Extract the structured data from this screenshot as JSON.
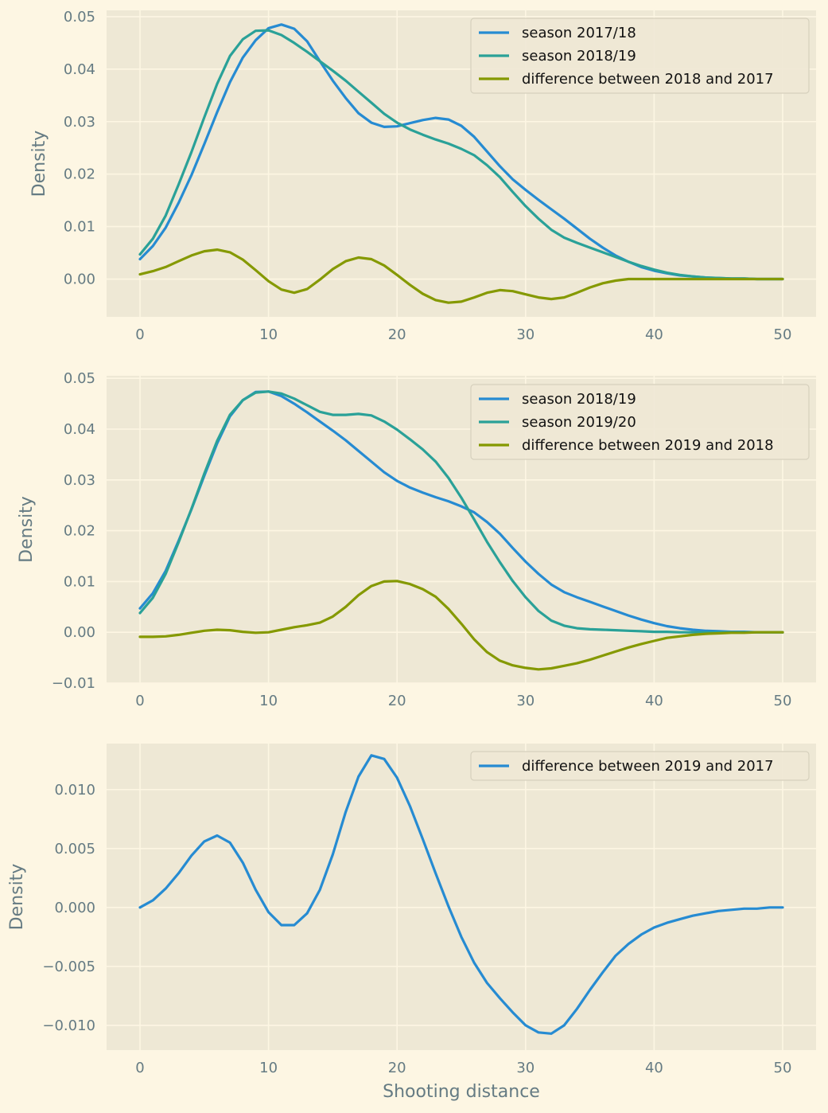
{
  "colors": {
    "figure_bg": "#fdf6e3",
    "axes_bg": "#eee8d5",
    "grid": "#fdf6e3",
    "text": "#657b83",
    "blue": "#268bd2",
    "cyan": "#2aa198",
    "olive": "#859900"
  },
  "chart_data": [
    {
      "type": "line",
      "title": "",
      "xlabel": "",
      "ylabel": "Density",
      "xlim": [
        -2.6,
        52.6
      ],
      "ylim": [
        -0.0072,
        0.0512
      ],
      "xticks": [
        0,
        10,
        20,
        30,
        40,
        50
      ],
      "xtick_labels": [
        "0",
        "10",
        "20",
        "30",
        "40",
        "50"
      ],
      "yticks": [
        0.0,
        0.01,
        0.02,
        0.03,
        0.04,
        0.05
      ],
      "ytick_labels": [
        "0.00",
        "0.01",
        "0.02",
        "0.03",
        "0.04",
        "0.05"
      ],
      "grid": true,
      "legend_position": "upper right",
      "x": [
        0,
        1,
        2,
        3,
        4,
        5,
        6,
        7,
        8,
        9,
        10,
        11,
        12,
        13,
        14,
        15,
        16,
        17,
        18,
        19,
        20,
        21,
        22,
        23,
        24,
        25,
        26,
        27,
        28,
        29,
        30,
        31,
        32,
        33,
        34,
        35,
        36,
        37,
        38,
        39,
        40,
        41,
        42,
        43,
        44,
        45,
        46,
        47,
        48,
        49,
        50
      ],
      "series": [
        {
          "name": "season 2017/18",
          "color": "#268bd2",
          "values": [
            0.0038,
            0.0063,
            0.0098,
            0.0145,
            0.0198,
            0.0257,
            0.0318,
            0.0375,
            0.0422,
            0.0455,
            0.0478,
            0.0485,
            0.0477,
            0.0453,
            0.0415,
            0.0378,
            0.0345,
            0.0316,
            0.0298,
            0.029,
            0.0291,
            0.0297,
            0.0303,
            0.0307,
            0.0304,
            0.0292,
            0.0271,
            0.0243,
            0.0215,
            0.019,
            0.017,
            0.0151,
            0.0133,
            0.0115,
            0.0096,
            0.0077,
            0.006,
            0.0045,
            0.0033,
            0.0023,
            0.0016,
            0.0011,
            0.0007,
            0.0005,
            0.0003,
            0.0002,
            0.0001,
            0.0001,
            0.0,
            0.0,
            0.0
          ]
        },
        {
          "name": "season 2018/19",
          "color": "#2aa198",
          "values": [
            0.0047,
            0.0077,
            0.0121,
            0.018,
            0.0242,
            0.0308,
            0.0372,
            0.0425,
            0.0457,
            0.0473,
            0.0474,
            0.0465,
            0.045,
            0.0433,
            0.0415,
            0.0397,
            0.0378,
            0.0357,
            0.0336,
            0.0315,
            0.0298,
            0.0285,
            0.0275,
            0.0266,
            0.0258,
            0.0248,
            0.0236,
            0.0217,
            0.0194,
            0.0166,
            0.0139,
            0.0115,
            0.0094,
            0.0079,
            0.0069,
            0.006,
            0.0051,
            0.0042,
            0.0033,
            0.0025,
            0.0018,
            0.0012,
            0.0008,
            0.0005,
            0.0003,
            0.0002,
            0.0001,
            0.0001,
            0.0,
            0.0,
            0.0
          ]
        },
        {
          "name": "difference between 2018 and 2017",
          "color": "#859900",
          "values": [
            0.0009,
            0.0015,
            0.0023,
            0.0034,
            0.0045,
            0.0053,
            0.0056,
            0.0051,
            0.0037,
            0.0017,
            -0.0004,
            -0.002,
            -0.0026,
            -0.0019,
            -0.0001,
            0.0019,
            0.0034,
            0.0041,
            0.0038,
            0.0026,
            0.0008,
            -0.0011,
            -0.0028,
            -0.004,
            -0.0045,
            -0.0043,
            -0.0035,
            -0.0026,
            -0.0021,
            -0.0023,
            -0.0029,
            -0.0035,
            -0.0038,
            -0.0035,
            -0.0026,
            -0.0016,
            -0.0008,
            -0.0003,
            0.0,
            0.0,
            0.0,
            0.0,
            0.0,
            0.0,
            0.0,
            0.0,
            0.0,
            0.0,
            0.0,
            0.0,
            0.0
          ]
        }
      ]
    },
    {
      "type": "line",
      "title": "",
      "xlabel": "",
      "ylabel": "Density",
      "xlim": [
        -2.6,
        52.6
      ],
      "ylim": [
        -0.01,
        0.0505
      ],
      "xticks": [
        0,
        10,
        20,
        30,
        40,
        50
      ],
      "xtick_labels": [
        "0",
        "10",
        "20",
        "30",
        "40",
        "50"
      ],
      "yticks": [
        -0.01,
        0.0,
        0.01,
        0.02,
        0.03,
        0.04,
        0.05
      ],
      "ytick_labels": [
        "−0.01",
        "0.00",
        "0.01",
        "0.02",
        "0.03",
        "0.04",
        "0.05"
      ],
      "grid": true,
      "legend_position": "upper right",
      "x": [
        0,
        1,
        2,
        3,
        4,
        5,
        6,
        7,
        8,
        9,
        10,
        11,
        12,
        13,
        14,
        15,
        16,
        17,
        18,
        19,
        20,
        21,
        22,
        23,
        24,
        25,
        26,
        27,
        28,
        29,
        30,
        31,
        32,
        33,
        34,
        35,
        36,
        37,
        38,
        39,
        40,
        41,
        42,
        43,
        44,
        45,
        46,
        47,
        48,
        49,
        50
      ],
      "series": [
        {
          "name": "season 2018/19",
          "color": "#268bd2",
          "values": [
            0.0047,
            0.0077,
            0.0121,
            0.018,
            0.0242,
            0.0308,
            0.0372,
            0.0425,
            0.0457,
            0.0473,
            0.0474,
            0.0465,
            0.045,
            0.0433,
            0.0415,
            0.0397,
            0.0378,
            0.0357,
            0.0336,
            0.0315,
            0.0298,
            0.0285,
            0.0275,
            0.0266,
            0.0258,
            0.0248,
            0.0236,
            0.0217,
            0.0194,
            0.0166,
            0.0139,
            0.0115,
            0.0094,
            0.0079,
            0.0069,
            0.006,
            0.0051,
            0.0042,
            0.0033,
            0.0025,
            0.0018,
            0.0012,
            0.0008,
            0.0005,
            0.0003,
            0.0002,
            0.0001,
            0.0001,
            0.0,
            0.0,
            0.0
          ]
        },
        {
          "name": "season 2019/20",
          "color": "#2aa198",
          "values": [
            0.0038,
            0.0068,
            0.0115,
            0.0177,
            0.0243,
            0.0312,
            0.0377,
            0.0428,
            0.0457,
            0.0472,
            0.0474,
            0.047,
            0.046,
            0.0447,
            0.0434,
            0.0428,
            0.0428,
            0.043,
            0.0427,
            0.0415,
            0.0399,
            0.038,
            0.036,
            0.0336,
            0.0304,
            0.0265,
            0.0222,
            0.0178,
            0.0138,
            0.0101,
            0.0069,
            0.0042,
            0.0023,
            0.0013,
            0.0008,
            0.0006,
            0.0005,
            0.0004,
            0.0003,
            0.0002,
            0.0001,
            0.0001,
            0.0,
            0.0,
            0.0,
            0.0,
            0.0,
            0.0,
            0.0,
            0.0,
            0.0
          ]
        },
        {
          "name": "difference between 2019 and 2018",
          "color": "#859900",
          "values": [
            -0.0009,
            -0.0009,
            -0.0008,
            -0.0005,
            -0.0001,
            0.0003,
            0.0005,
            0.0004,
            0.0001,
            -0.0001,
            0.0,
            0.0005,
            0.001,
            0.0014,
            0.0019,
            0.0031,
            0.005,
            0.0073,
            0.0091,
            0.01,
            0.0101,
            0.0095,
            0.0085,
            0.007,
            0.0046,
            0.0017,
            -0.0014,
            -0.0039,
            -0.0056,
            -0.0065,
            -0.007,
            -0.0073,
            -0.0071,
            -0.0066,
            -0.0061,
            -0.0054,
            -0.0046,
            -0.0038,
            -0.003,
            -0.0023,
            -0.0017,
            -0.0011,
            -0.0008,
            -0.0005,
            -0.0003,
            -0.0002,
            -0.0001,
            -0.0001,
            0.0,
            0.0,
            0.0
          ]
        }
      ]
    },
    {
      "type": "line",
      "title": "",
      "xlabel": "Shooting distance",
      "ylabel": "Density",
      "xlim": [
        -2.6,
        52.6
      ],
      "ylim": [
        -0.0121,
        0.0139
      ],
      "xticks": [
        0,
        10,
        20,
        30,
        40,
        50
      ],
      "xtick_labels": [
        "0",
        "10",
        "20",
        "30",
        "40",
        "50"
      ],
      "yticks": [
        -0.01,
        -0.005,
        0.0,
        0.005,
        0.01
      ],
      "ytick_labels": [
        "−0.010",
        "−0.005",
        "0.000",
        "0.005",
        "0.010"
      ],
      "grid": true,
      "legend_position": "upper right",
      "x": [
        0,
        1,
        2,
        3,
        4,
        5,
        6,
        7,
        8,
        9,
        10,
        11,
        12,
        13,
        14,
        15,
        16,
        17,
        18,
        19,
        20,
        21,
        22,
        23,
        24,
        25,
        26,
        27,
        28,
        29,
        30,
        31,
        32,
        33,
        34,
        35,
        36,
        37,
        38,
        39,
        40,
        41,
        42,
        43,
        44,
        45,
        46,
        47,
        48,
        49,
        50
      ],
      "series": [
        {
          "name": "difference between 2019 and 2017",
          "color": "#268bd2",
          "values": [
            0.0,
            0.0006,
            0.0016,
            0.0029,
            0.0044,
            0.0056,
            0.0061,
            0.0055,
            0.0038,
            0.0015,
            -0.0004,
            -0.0015,
            -0.0015,
            -0.0005,
            0.0015,
            0.0045,
            0.0081,
            0.0111,
            0.0129,
            0.0126,
            0.011,
            0.0086,
            0.0058,
            0.0029,
            0.0001,
            -0.0025,
            -0.0047,
            -0.0064,
            -0.0077,
            -0.0089,
            -0.01,
            -0.0106,
            -0.0107,
            -0.01,
            -0.0086,
            -0.007,
            -0.0055,
            -0.0041,
            -0.0031,
            -0.0023,
            -0.0017,
            -0.0013,
            -0.001,
            -0.0007,
            -0.0005,
            -0.0003,
            -0.0002,
            -0.0001,
            -0.0001,
            0.0,
            0.0
          ]
        }
      ]
    }
  ]
}
